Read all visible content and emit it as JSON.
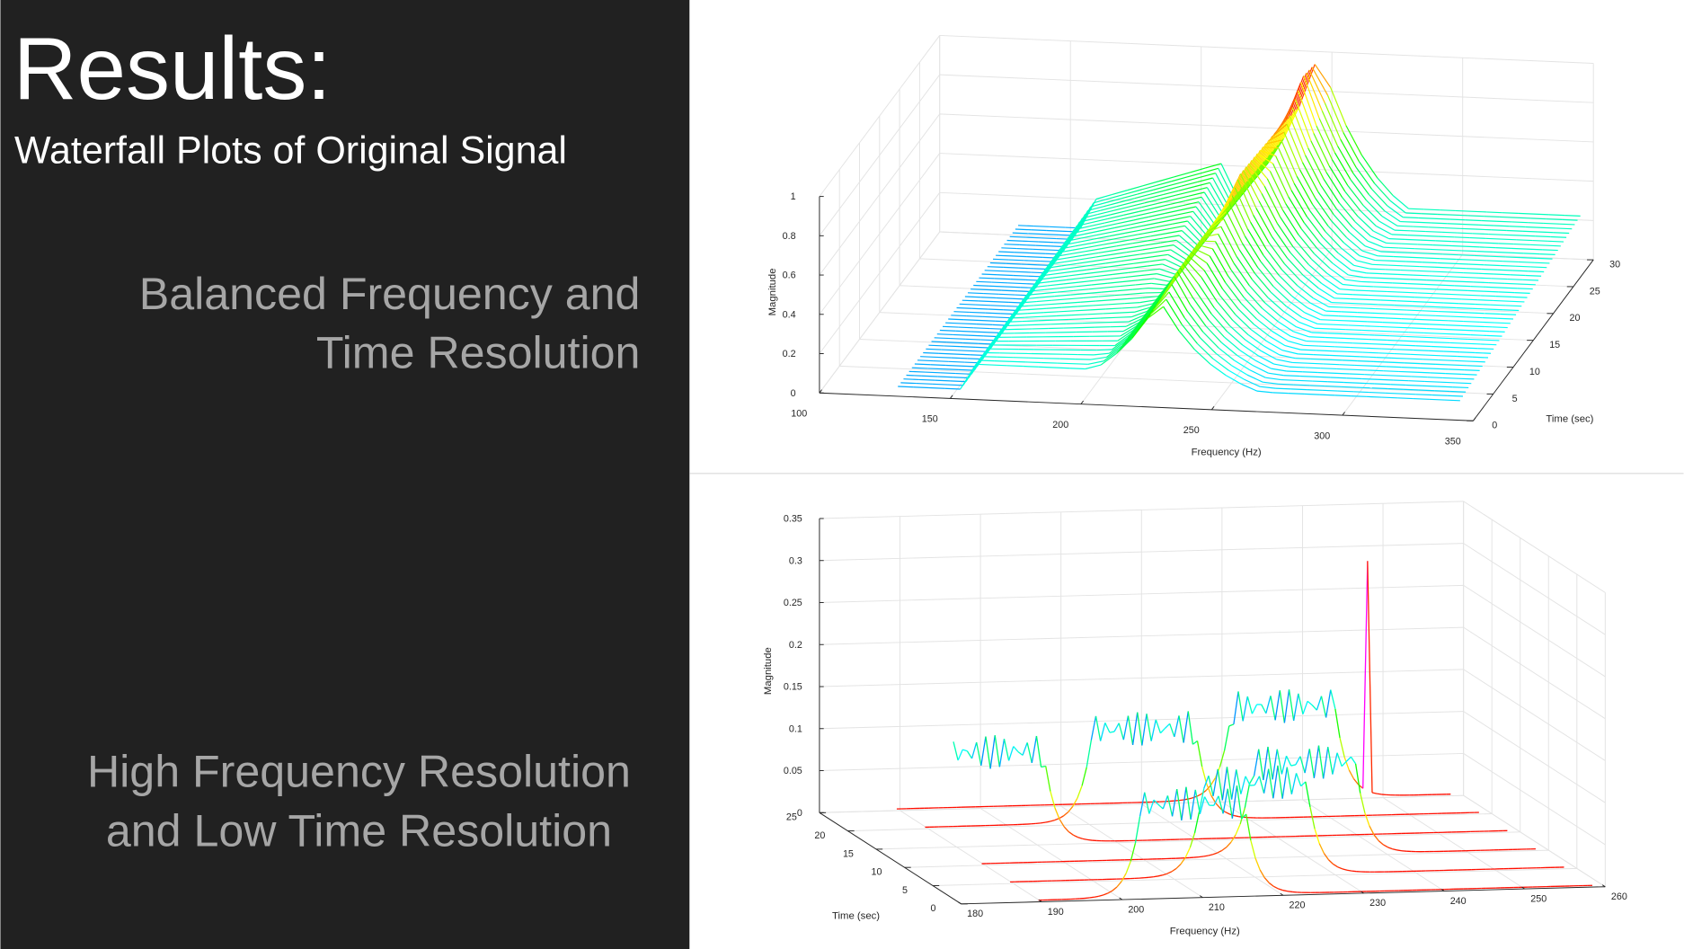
{
  "header": {
    "title": "Results:",
    "subtitle": "Waterfall Plots of Original Signal"
  },
  "sections": [
    {
      "lines": [
        "Balanced Frequency and",
        "Time Resolution"
      ]
    },
    {
      "lines": [
        "High Frequency Resolution",
        "and Low Time Resolution"
      ]
    }
  ],
  "plots": [
    {
      "z_label": "Magnitude",
      "x_label": "Frequency (Hz)",
      "y_label": "Time (sec)",
      "z_ticks": [
        0,
        0.2,
        0.4,
        0.6,
        0.8,
        1
      ],
      "x_ticks": [
        100,
        150,
        200,
        250,
        300,
        350
      ],
      "y_ticks": [
        0,
        5,
        10,
        15,
        20,
        25,
        30
      ]
    },
    {
      "z_label": "Magnitude",
      "x_label": "Frequency (Hz)",
      "y_label": "Time (sec)",
      "z_ticks": [
        0,
        0.05,
        0.1,
        0.15,
        0.2,
        0.25,
        0.3,
        0.35
      ],
      "x_ticks": [
        180,
        190,
        200,
        210,
        220,
        230,
        240,
        250,
        260
      ],
      "y_ticks": [
        0,
        5,
        10,
        15,
        20,
        25
      ]
    }
  ]
}
